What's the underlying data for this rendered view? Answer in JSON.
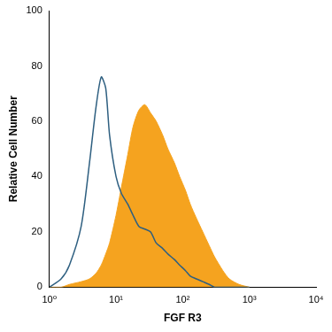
{
  "chart_data": {
    "type": "line",
    "x_label": "FGF R3",
    "y_label": "Relative Cell Number",
    "x": [
      1,
      1.5,
      2,
      3,
      4,
      5,
      6,
      7,
      8,
      10,
      12,
      15,
      18,
      22,
      27,
      33,
      40,
      50,
      60,
      75,
      90,
      110,
      130,
      160,
      200,
      250,
      300,
      400,
      500,
      700,
      1000
    ],
    "series": [
      {
        "type": "line",
        "color": "#2e5f80",
        "values": [
          0,
          3,
          8,
          22,
          45,
          65,
          76,
          72,
          55,
          40,
          34,
          30,
          26,
          22,
          21,
          20,
          16,
          14,
          12,
          10,
          8,
          6,
          4,
          3,
          2,
          1,
          0,
          0,
          0,
          0,
          0
        ]
      },
      {
        "type": "area",
        "color": "#f5a31f",
        "values": [
          0,
          0,
          1,
          2,
          3,
          5,
          8,
          12,
          16,
          26,
          36,
          48,
          58,
          64,
          66,
          63,
          60,
          55,
          50,
          45,
          40,
          35,
          30,
          25,
          20,
          15,
          11,
          6,
          3,
          1,
          0
        ]
      }
    ],
    "log": "x",
    "xlim": [
      1,
      10000
    ],
    "xticks": [
      {
        "value": 1,
        "label": "10⁰"
      },
      {
        "value": 10,
        "label": "10¹"
      },
      {
        "value": 100,
        "label": "10²"
      },
      {
        "value": 1000,
        "label": "10³"
      },
      {
        "value": 10000,
        "label": "10⁴"
      }
    ],
    "ylim": [
      0,
      100
    ],
    "yticks": [
      0,
      20,
      40,
      60,
      80,
      100
    ],
    "grid": false
  }
}
